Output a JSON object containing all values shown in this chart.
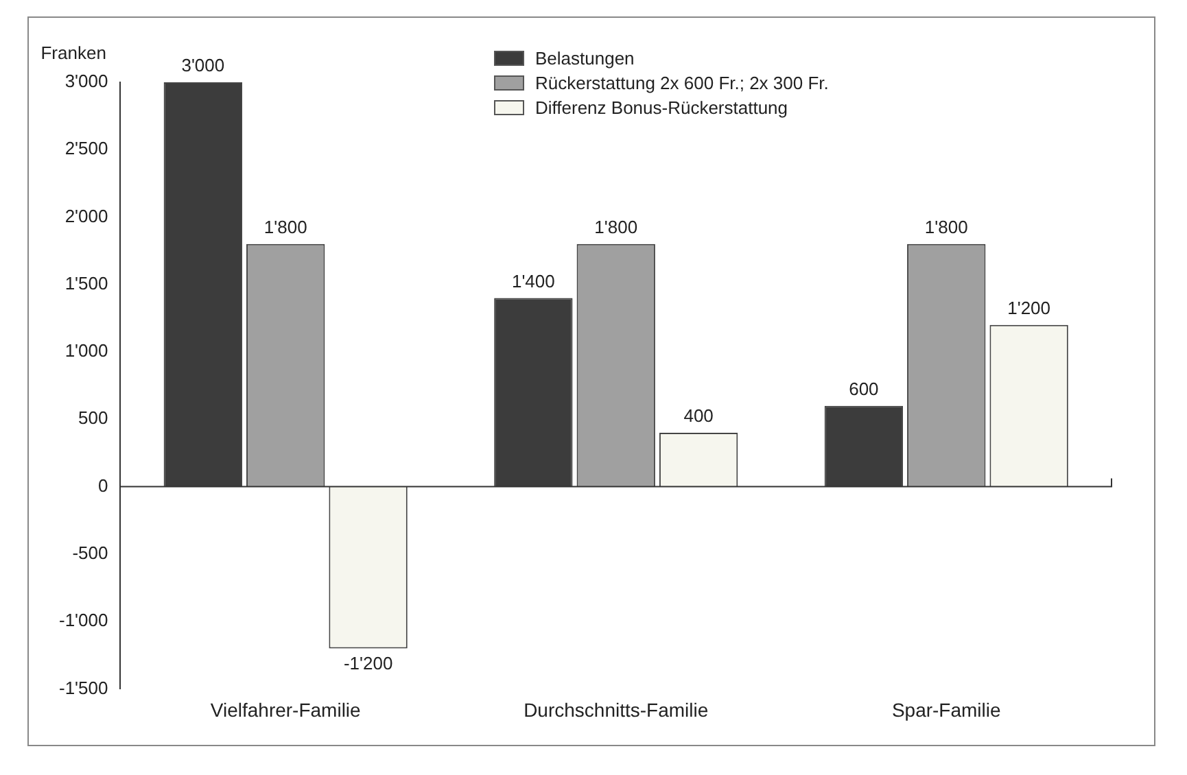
{
  "chart_data": {
    "type": "bar",
    "ylabel": "Franken",
    "categories": [
      "Vielfahrer-Familie",
      "Durchschnitts-Familie",
      "Spar-Familie"
    ],
    "series": [
      {
        "name": "Belastungen",
        "color": "#3c3c3c",
        "values": [
          3000,
          1400,
          600
        ],
        "value_labels": [
          "3'000",
          "1'400",
          "600"
        ]
      },
      {
        "name": "Rückerstattung 2x 600 Fr.; 2x 300 Fr.",
        "color": "#a0a0a0",
        "values": [
          1800,
          1800,
          1800
        ],
        "value_labels": [
          "1'800",
          "1'800",
          "1'800"
        ]
      },
      {
        "name": "Differenz Bonus-Rückerstattung",
        "color": "#f6f6ee",
        "values": [
          -1200,
          400,
          1200
        ],
        "value_labels": [
          "-1'200",
          "400",
          "1'200"
        ]
      }
    ],
    "ylim": [
      -1500,
      3000
    ],
    "yticks": [
      {
        "value": -1500,
        "label": "-1'500"
      },
      {
        "value": -1000,
        "label": "-1'000"
      },
      {
        "value": -500,
        "label": "-500"
      },
      0,
      {
        "value": 500,
        "label": "500"
      },
      {
        "value": 1000,
        "label": "1'000"
      },
      {
        "value": 1500,
        "label": "1'500"
      },
      {
        "value": 2000,
        "label": "2'000"
      },
      {
        "value": 2500,
        "label": "2'500"
      },
      {
        "value": 3000,
        "label": "3'000"
      }
    ],
    "ref_lines": [
      {
        "axis": "y",
        "value": 0,
        "color": "#333333"
      }
    ],
    "grid": false,
    "legend": "top"
  }
}
